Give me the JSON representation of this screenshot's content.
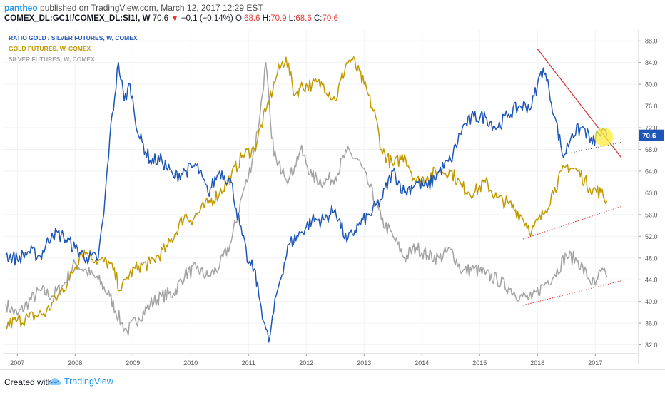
{
  "header": {
    "author": "pantheo",
    "published": "published on TradingView.com, March 12, 2017 12:29 EST",
    "symbol": "COMEX_DL:GC1!/COMEX_DL:SI1!, W",
    "last": "70.6",
    "change_arrow": "▼",
    "change": "−0.1 (−0.14%)",
    "open_label": "O:",
    "open": "68.6",
    "high_label": "H:",
    "high": "70.9",
    "low_label": "L:",
    "low": "68.6",
    "close_label": "C:",
    "close": "70.6"
  },
  "footer": {
    "created_with": "Created with",
    "brand": "TradingView"
  },
  "colors": {
    "ratio": "#1e56b8",
    "gold": "#c19a00",
    "silver": "#a3a3a3",
    "trend": "#d32f2f",
    "highlight": "#ffeb3b"
  },
  "chart_data": {
    "type": "line",
    "legend": [
      {
        "text": "RATIO GOLD / SILVER FUTURES, W, COMEX",
        "color": "#1e56b8"
      },
      {
        "text": "GOLD FUTURES, W, COMEX",
        "color": "#c19a00"
      },
      {
        "text": "SILVER FUTURES, W, COMEX",
        "color": "#a3a3a3"
      }
    ],
    "xlim": [
      2006.75,
      2017.75
    ],
    "x_ticks": [
      2007,
      2008,
      2009,
      2010,
      2011,
      2012,
      2013,
      2014,
      2015,
      2016,
      2017
    ],
    "ylim": [
      30.5,
      90
    ],
    "y_ticks": [
      32.0,
      36.0,
      40.0,
      44.0,
      48.0,
      52.0,
      56.0,
      60.0,
      64.0,
      68.0,
      72.0,
      76.0,
      80.0,
      84.0,
      88.0
    ],
    "last_value_label": "70.6",
    "series": [
      {
        "name": "RATIO GOLD / SILVER FUTURES, W, COMEX",
        "color": "#1e56b8",
        "x": [
          2006.8,
          2007.0,
          2007.2,
          2007.4,
          2007.6,
          2007.8,
          2008.0,
          2008.2,
          2008.4,
          2008.5,
          2008.6,
          2008.75,
          2008.85,
          2008.95,
          2009.1,
          2009.3,
          2009.5,
          2009.7,
          2009.9,
          2010.1,
          2010.3,
          2010.5,
          2010.7,
          2010.85,
          2011.0,
          2011.1,
          2011.2,
          2011.3,
          2011.35,
          2011.5,
          2011.7,
          2011.9,
          2012.1,
          2012.3,
          2012.5,
          2012.7,
          2012.9,
          2013.1,
          2013.3,
          2013.5,
          2013.7,
          2013.9,
          2014.1,
          2014.3,
          2014.5,
          2014.7,
          2014.9,
          2015.1,
          2015.3,
          2015.5,
          2015.7,
          2015.9,
          2016.0,
          2016.1,
          2016.2,
          2016.3,
          2016.45,
          2016.6,
          2016.8,
          2016.95,
          2017.05,
          2017.2
        ],
        "values": [
          48.6,
          47.8,
          49.2,
          48.3,
          52.6,
          52.0,
          49.8,
          48.0,
          48.0,
          56.5,
          70.0,
          84.0,
          77.0,
          80.0,
          70.5,
          66.0,
          66.0,
          63.0,
          64.0,
          65.0,
          60.0,
          64.0,
          62.0,
          54.0,
          47.0,
          46.0,
          40.0,
          35.0,
          32.5,
          42.0,
          50.5,
          52.6,
          55.0,
          55.0,
          57.0,
          51.0,
          54.0,
          56.0,
          58.8,
          64.0,
          60.0,
          62.0,
          61.0,
          64.0,
          66.0,
          72.0,
          74.0,
          74.0,
          72.0,
          74.5,
          76.0,
          76.0,
          80.0,
          83.0,
          79.0,
          74.0,
          66.5,
          71.0,
          72.0,
          69.0,
          71.0,
          70.6
        ]
      },
      {
        "name": "GOLD FUTURES, W, COMEX",
        "color": "#c19a00",
        "x": [
          2006.8,
          2007.0,
          2007.2,
          2007.5,
          2007.7,
          2007.9,
          2008.1,
          2008.2,
          2008.4,
          2008.6,
          2008.8,
          2008.9,
          2009.1,
          2009.3,
          2009.6,
          2009.9,
          2010.0,
          2010.3,
          2010.5,
          2010.7,
          2010.9,
          2011.1,
          2011.3,
          2011.5,
          2011.65,
          2011.8,
          2011.9,
          2012.1,
          2012.3,
          2012.5,
          2012.7,
          2012.8,
          2013.0,
          2013.2,
          2013.3,
          2013.5,
          2013.7,
          2013.9,
          2014.1,
          2014.3,
          2014.5,
          2014.7,
          2014.9,
          2015.1,
          2015.3,
          2015.5,
          2015.7,
          2015.9,
          2016.1,
          2016.3,
          2016.5,
          2016.7,
          2016.9,
          2017.1,
          2017.2
        ],
        "values": [
          35.5,
          36.5,
          37.0,
          38.0,
          41.0,
          44.0,
          49.0,
          49.0,
          47.5,
          47.0,
          42.0,
          44.5,
          46.5,
          47.0,
          50.0,
          56.0,
          55.0,
          58.0,
          60.0,
          63.0,
          67.0,
          68.0,
          75.0,
          82.0,
          85.0,
          78.0,
          79.5,
          80.0,
          80.0,
          77.0,
          84.0,
          84.5,
          80.0,
          74.0,
          68.0,
          65.0,
          67.0,
          62.0,
          63.0,
          64.0,
          64.0,
          61.0,
          60.0,
          62.0,
          59.0,
          58.0,
          56.0,
          53.0,
          56.0,
          61.0,
          65.0,
          64.0,
          61.0,
          60.0,
          58.5
        ]
      },
      {
        "name": "SILVER FUTURES, W, COMEX",
        "color": "#a3a3a3",
        "x": [
          2006.8,
          2007.0,
          2007.2,
          2007.4,
          2007.6,
          2007.8,
          2008.0,
          2008.2,
          2008.4,
          2008.6,
          2008.8,
          2008.9,
          2009.1,
          2009.3,
          2009.5,
          2009.7,
          2009.9,
          2010.1,
          2010.3,
          2010.5,
          2010.7,
          2010.9,
          2011.0,
          2011.1,
          2011.2,
          2011.3,
          2011.4,
          2011.5,
          2011.6,
          2011.7,
          2011.8,
          2011.9,
          2012.1,
          2012.3,
          2012.5,
          2012.7,
          2012.9,
          2013.1,
          2013.3,
          2013.5,
          2013.7,
          2013.9,
          2014.1,
          2014.3,
          2014.5,
          2014.7,
          2014.9,
          2015.1,
          2015.3,
          2015.5,
          2015.7,
          2015.9,
          2016.1,
          2016.3,
          2016.5,
          2016.7,
          2016.9,
          2017.0,
          2017.1,
          2017.2
        ],
        "values": [
          39.5,
          37.5,
          40.0,
          42.0,
          41.0,
          43.0,
          47.0,
          45.5,
          44.0,
          41.0,
          36.0,
          34.5,
          37.0,
          39.5,
          41.0,
          41.5,
          45.0,
          46.0,
          44.5,
          46.5,
          51.0,
          60.0,
          63.0,
          68.0,
          74.5,
          84.0,
          70.0,
          65.0,
          64.5,
          62.5,
          65.0,
          68.0,
          63.0,
          62.0,
          63.0,
          67.5,
          66.0,
          61.0,
          55.0,
          52.0,
          48.0,
          50.0,
          48.5,
          48.0,
          49.5,
          45.5,
          46.0,
          45.0,
          44.0,
          42.5,
          41.0,
          40.5,
          43.0,
          45.0,
          48.5,
          47.5,
          44.0,
          43.0,
          45.5,
          44.5
        ]
      }
    ]
  }
}
